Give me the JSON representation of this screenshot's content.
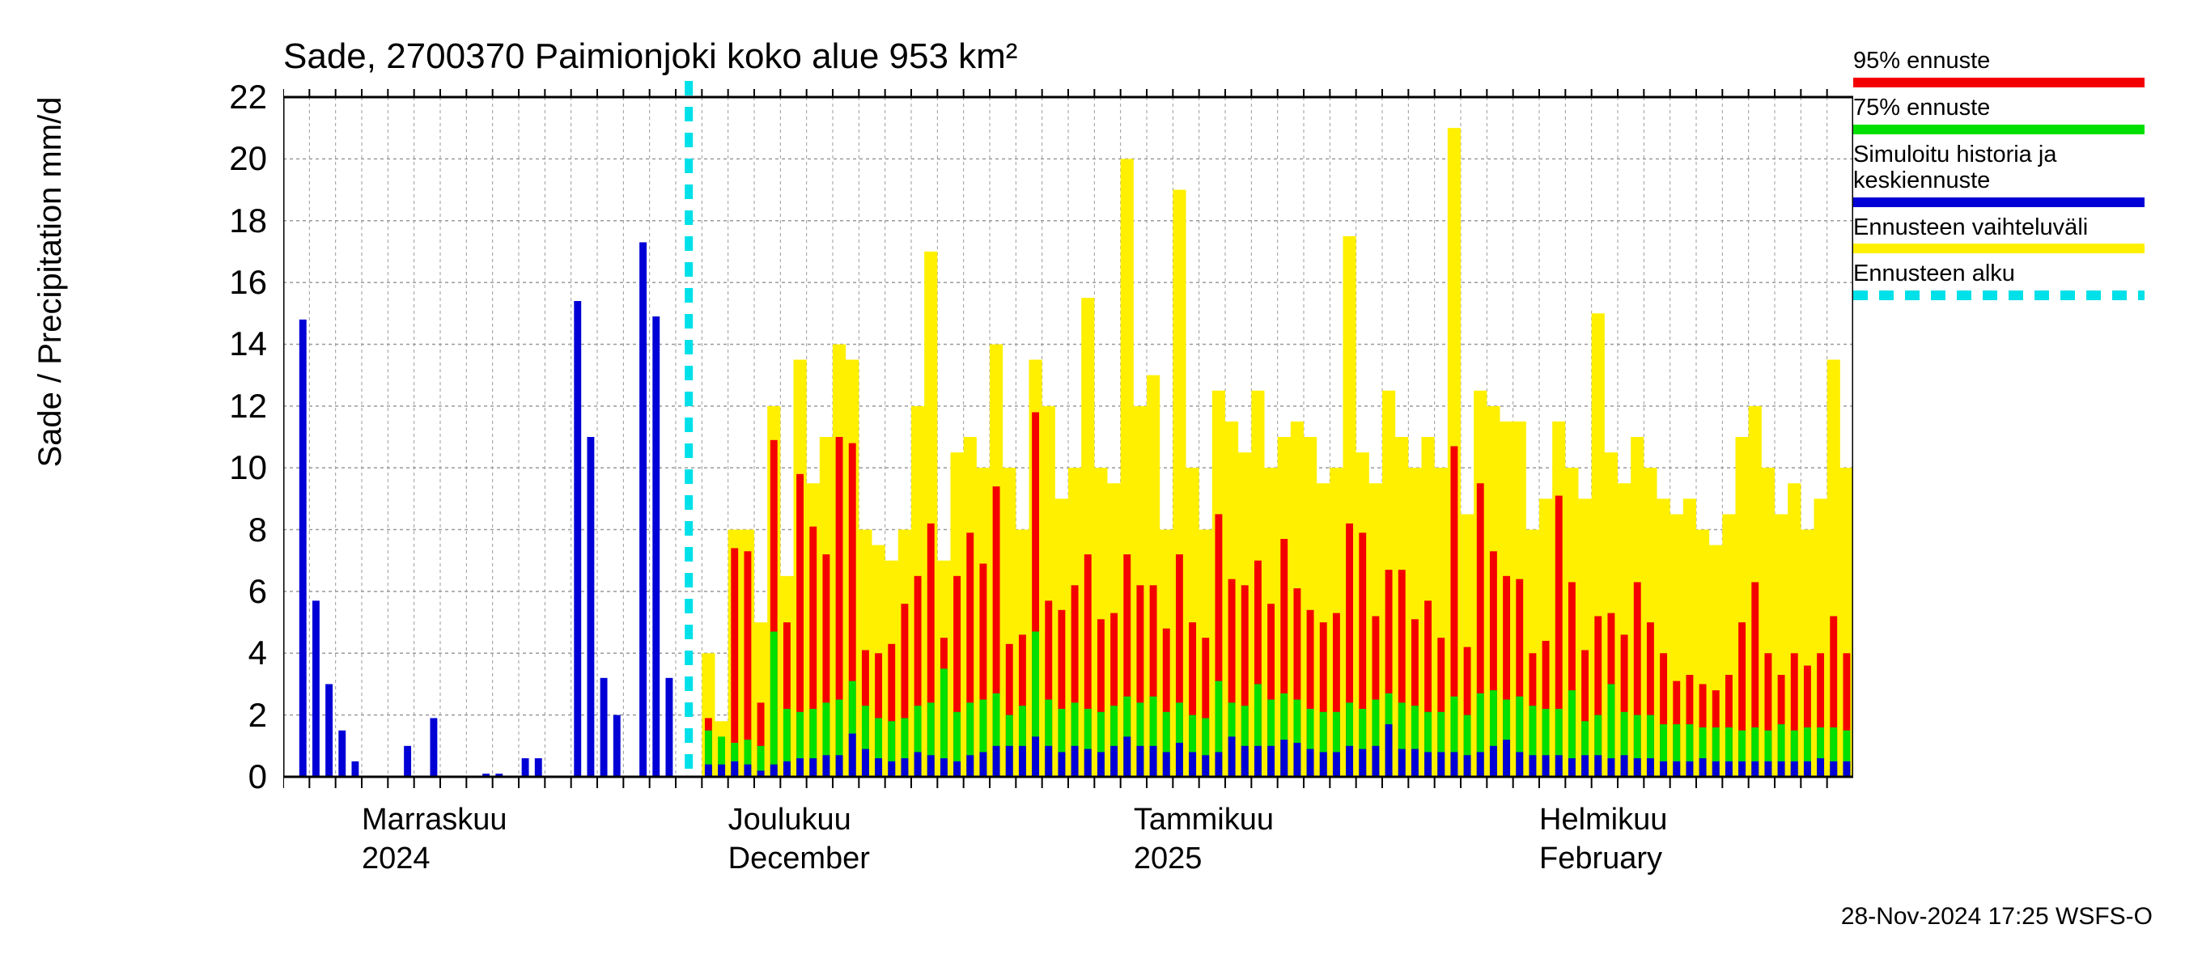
{
  "title": "Sade, 2700370 Paimionjoki koko alue 953 km²",
  "ylabel": "Sade / Precipitation   mm/d",
  "footer": "28-Nov-2024 17:25 WSFS-O",
  "chart": {
    "type": "bar+area",
    "background_color": "#ffffff",
    "grid_color": "#9a9a9a",
    "axis_color": "#000000",
    "grid_dash": "4 4",
    "ylim": [
      0,
      22
    ],
    "yticks": [
      0,
      2,
      4,
      6,
      8,
      10,
      12,
      14,
      16,
      18,
      20,
      22
    ],
    "xtick_minor_positions": [
      0,
      2,
      4,
      6,
      8,
      10,
      12,
      14,
      16,
      18,
      20,
      22,
      24,
      26,
      28,
      30,
      32,
      34,
      36,
      38,
      40,
      42,
      44,
      46,
      48,
      50,
      52,
      54,
      56,
      58,
      60,
      62,
      64,
      66,
      68,
      70,
      72,
      74,
      76,
      78,
      80,
      82,
      84,
      86,
      88,
      90,
      92,
      94,
      96,
      98,
      100,
      102,
      104,
      106,
      108,
      110,
      112,
      114,
      116,
      118
    ],
    "xlabels": [
      {
        "pos_index": 6,
        "line1": "Marraskuu",
        "line2": "2024"
      },
      {
        "pos_index": 34,
        "line1": "Joulukuu",
        "line2": "December"
      },
      {
        "pos_index": 65,
        "line1": "Tammikuu",
        "line2": "2025"
      },
      {
        "pos_index": 96,
        "line1": "Helmikuu",
        "line2": "February"
      }
    ],
    "forecast_start_index": 31,
    "colors": {
      "history_blue": "#0000d6",
      "p95_red": "#f40000",
      "p75_green": "#00e000",
      "range_yellow": "#fff000",
      "forecast_start_cyan": "#00e0e8"
    },
    "bar_width_ratio": 0.55,
    "n_bars": 120,
    "series": {
      "history_blue": [
        0,
        14.8,
        5.7,
        3.0,
        1.5,
        0.5,
        0,
        0,
        0,
        1.0,
        0,
        1.9,
        0,
        0,
        0,
        0.1,
        0.1,
        0,
        0.6,
        0.6,
        0,
        0,
        15.4,
        11.0,
        3.2,
        2.0,
        0,
        17.3,
        14.9,
        3.2,
        0,
        0,
        0,
        0,
        0,
        0,
        0,
        0,
        0,
        0,
        0,
        0,
        0,
        0,
        0,
        0,
        0,
        0,
        0,
        0,
        0,
        0,
        0,
        0,
        0,
        0,
        0,
        0,
        0,
        0,
        0,
        0,
        0,
        0,
        0,
        0,
        0,
        0,
        0,
        0,
        0,
        0,
        0,
        0,
        0,
        0,
        0,
        0,
        0,
        0,
        0,
        0,
        0,
        0,
        0,
        0,
        0,
        0,
        0,
        0,
        0,
        0,
        0,
        0,
        0,
        0,
        0,
        0,
        0,
        0,
        0,
        0,
        0,
        0,
        0,
        0,
        0,
        0,
        0,
        0,
        0,
        0,
        0,
        0,
        0,
        0,
        0,
        0,
        0,
        0
      ],
      "forecast_blue": [
        0,
        0,
        0,
        0,
        0,
        0,
        0,
        0,
        0,
        0,
        0,
        0,
        0,
        0,
        0,
        0,
        0,
        0,
        0,
        0,
        0,
        0,
        0,
        0,
        0,
        0,
        0,
        0,
        0,
        0,
        0,
        0,
        0.4,
        0.4,
        0.5,
        0.4,
        0.2,
        0.4,
        0.5,
        0.6,
        0.6,
        0.7,
        0.7,
        1.4,
        0.9,
        0.6,
        0.5,
        0.6,
        0.8,
        0.7,
        0.6,
        0.5,
        0.7,
        0.8,
        1.0,
        1.0,
        1.0,
        1.3,
        1.0,
        0.8,
        1.0,
        0.9,
        0.8,
        1.0,
        1.3,
        1.0,
        1.0,
        0.8,
        1.1,
        0.8,
        0.7,
        0.8,
        1.3,
        1.0,
        1.0,
        1.0,
        1.2,
        1.1,
        0.9,
        0.8,
        0.8,
        1.0,
        0.9,
        1.0,
        1.7,
        0.9,
        0.9,
        0.8,
        0.8,
        0.8,
        0.7,
        0.8,
        1.0,
        1.2,
        0.8,
        0.7,
        0.7,
        0.7,
        0.6,
        0.7,
        0.7,
        0.6,
        0.7,
        0.6,
        0.6,
        0.5,
        0.5,
        0.5,
        0.6,
        0.5,
        0.5,
        0.5,
        0.5,
        0.5,
        0.5,
        0.5,
        0.5,
        0.6,
        0.5,
        0.5
      ],
      "p75_green": [
        0,
        0,
        0,
        0,
        0,
        0,
        0,
        0,
        0,
        0,
        0,
        0,
        0,
        0,
        0,
        0,
        0,
        0,
        0,
        0,
        0,
        0,
        0,
        0,
        0,
        0,
        0,
        0,
        0,
        0,
        0,
        0,
        1.5,
        1.3,
        1.1,
        1.2,
        1.0,
        4.7,
        2.2,
        2.1,
        2.2,
        2.4,
        2.5,
        3.1,
        2.3,
        1.9,
        1.8,
        1.9,
        2.3,
        2.4,
        3.5,
        2.1,
        2.4,
        2.5,
        2.7,
        2.0,
        2.3,
        4.7,
        2.5,
        2.2,
        2.4,
        2.2,
        2.1,
        2.3,
        2.6,
        2.4,
        2.6,
        2.1,
        2.4,
        2.0,
        1.9,
        3.1,
        2.4,
        2.3,
        3.0,
        2.5,
        2.7,
        2.5,
        2.2,
        2.1,
        2.1,
        2.4,
        2.2,
        2.5,
        2.7,
        2.4,
        2.3,
        2.1,
        2.1,
        2.6,
        2.0,
        2.7,
        2.8,
        2.5,
        2.6,
        2.3,
        2.2,
        2.2,
        2.8,
        1.8,
        2.0,
        3.0,
        2.1,
        2.0,
        2.0,
        1.7,
        1.7,
        1.7,
        1.6,
        1.6,
        1.6,
        1.5,
        1.6,
        1.5,
        1.7,
        1.5,
        1.6,
        1.6,
        1.6,
        1.5
      ],
      "p95_red": [
        0,
        0,
        0,
        0,
        0,
        0,
        0,
        0,
        0,
        0,
        0,
        0,
        0,
        0,
        0,
        0,
        0,
        0,
        0,
        0,
        0,
        0,
        0,
        0,
        0,
        0,
        0,
        0,
        0,
        0,
        0,
        0,
        1.9,
        0.5,
        7.4,
        7.3,
        2.4,
        10.9,
        5.0,
        9.8,
        8.1,
        7.2,
        11.0,
        10.8,
        4.1,
        4.0,
        4.3,
        5.6,
        6.5,
        8.2,
        4.5,
        6.5,
        7.9,
        6.9,
        9.4,
        4.3,
        4.6,
        11.8,
        5.7,
        5.4,
        6.2,
        7.2,
        5.1,
        5.3,
        7.2,
        6.2,
        6.2,
        4.8,
        7.2,
        5.0,
        4.5,
        8.5,
        6.4,
        6.2,
        7.0,
        5.6,
        7.7,
        6.1,
        5.4,
        5.0,
        5.3,
        8.2,
        7.9,
        5.2,
        6.7,
        6.7,
        5.1,
        5.7,
        4.5,
        10.7,
        4.2,
        9.5,
        7.3,
        6.5,
        6.4,
        4.0,
        4.4,
        9.1,
        6.3,
        4.1,
        5.2,
        5.3,
        4.6,
        6.3,
        5.0,
        4.0,
        3.1,
        3.3,
        3.0,
        2.8,
        3.3,
        5.0,
        6.3,
        4.0,
        3.3,
        4.0,
        3.6,
        4.0,
        5.2,
        4.0
      ],
      "range_yellow": [
        0,
        0,
        0,
        0,
        0,
        0,
        0,
        0,
        0,
        0,
        0,
        0,
        0,
        0,
        0,
        0,
        0,
        0,
        0,
        0,
        0,
        0,
        0,
        0,
        0,
        0,
        0,
        0,
        0,
        0,
        0,
        0,
        4.0,
        1.8,
        8.0,
        8.0,
        5.0,
        12.0,
        6.5,
        13.5,
        9.5,
        11.0,
        14.0,
        13.5,
        8.0,
        7.5,
        7.0,
        8.0,
        12.0,
        17.0,
        7.0,
        10.5,
        11.0,
        10.0,
        14.0,
        10.0,
        8.0,
        13.5,
        12.0,
        9.0,
        10.0,
        15.5,
        10.0,
        9.5,
        20.0,
        12.0,
        13.0,
        8.0,
        19.0,
        10.0,
        8.0,
        12.5,
        11.5,
        10.5,
        12.5,
        10.0,
        11.0,
        11.5,
        11.0,
        9.5,
        10.0,
        17.5,
        10.5,
        9.5,
        12.5,
        11.0,
        10.0,
        11.0,
        10.0,
        21.0,
        8.5,
        12.5,
        12.0,
        11.5,
        11.5,
        8.0,
        9.0,
        11.5,
        10.0,
        9.0,
        15.0,
        10.5,
        9.5,
        11.0,
        10.0,
        9.0,
        8.5,
        9.0,
        8.0,
        7.5,
        8.5,
        11.0,
        12.0,
        10.0,
        8.5,
        9.5,
        8.0,
        9.0,
        13.5,
        10.0
      ]
    }
  },
  "legend": [
    {
      "label": "95% ennuste",
      "color": "#f40000",
      "type": "line"
    },
    {
      "label": "75% ennuste",
      "color": "#00e000",
      "type": "line"
    },
    {
      "label": "Simuloitu historia ja\nkeskiennuste",
      "color": "#0000d6",
      "type": "line"
    },
    {
      "label": "Ennusteen vaihteluväli",
      "color": "#fff000",
      "type": "line"
    },
    {
      "label": "Ennusteen alku",
      "color": "#00e0e8",
      "type": "dashed"
    }
  ]
}
